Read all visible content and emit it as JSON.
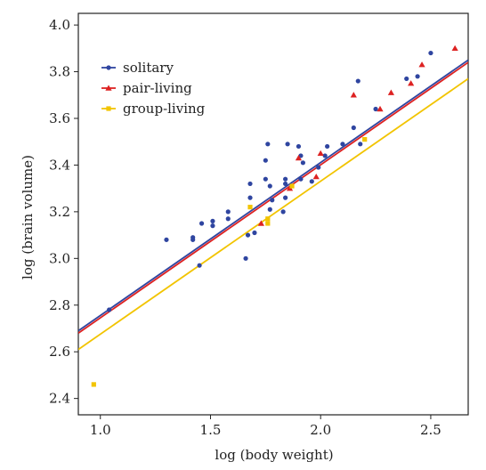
{
  "chart_data": {
    "type": "scatter",
    "xlabel": "log (body weight)",
    "ylabel": "log (brain volume)",
    "xlim": [
      0.9,
      2.67
    ],
    "ylim": [
      2.33,
      4.05
    ],
    "x_ticks": [
      1.0,
      1.5,
      2.0,
      2.5
    ],
    "x_tick_labels": [
      "1.0",
      "1.5",
      "2.0",
      "2.5"
    ],
    "y_ticks": [
      2.4,
      2.6,
      2.8,
      3.0,
      3.2,
      3.4,
      3.6,
      3.8,
      4.0
    ],
    "y_tick_labels": [
      "2.4",
      "2.6",
      "2.8",
      "3.0",
      "3.2",
      "3.4",
      "3.6",
      "3.8",
      "4.0"
    ],
    "grid": false,
    "legend_position": "top-left",
    "series": [
      {
        "name": "solitary",
        "color": "#2f45a0",
        "marker": "circle",
        "points": [
          [
            1.04,
            2.78
          ],
          [
            1.3,
            3.08
          ],
          [
            1.42,
            3.08
          ],
          [
            1.42,
            3.09
          ],
          [
            1.45,
            2.97
          ],
          [
            1.46,
            3.15
          ],
          [
            1.51,
            3.16
          ],
          [
            1.51,
            3.14
          ],
          [
            1.58,
            3.2
          ],
          [
            1.58,
            3.17
          ],
          [
            1.66,
            3.0
          ],
          [
            1.67,
            3.1
          ],
          [
            1.68,
            3.26
          ],
          [
            1.68,
            3.32
          ],
          [
            1.7,
            3.11
          ],
          [
            1.75,
            3.34
          ],
          [
            1.75,
            3.42
          ],
          [
            1.76,
            3.49
          ],
          [
            1.77,
            3.21
          ],
          [
            1.77,
            3.31
          ],
          [
            1.78,
            3.25
          ],
          [
            1.83,
            3.2
          ],
          [
            1.84,
            3.26
          ],
          [
            1.84,
            3.32
          ],
          [
            1.84,
            3.34
          ],
          [
            1.85,
            3.49
          ],
          [
            1.9,
            3.48
          ],
          [
            1.91,
            3.44
          ],
          [
            1.91,
            3.34
          ],
          [
            1.92,
            3.41
          ],
          [
            1.96,
            3.33
          ],
          [
            1.99,
            3.39
          ],
          [
            2.02,
            3.44
          ],
          [
            2.03,
            3.48
          ],
          [
            2.1,
            3.49
          ],
          [
            2.15,
            3.56
          ],
          [
            2.17,
            3.76
          ],
          [
            2.18,
            3.49
          ],
          [
            2.25,
            3.64
          ],
          [
            2.39,
            3.77
          ],
          [
            2.44,
            3.78
          ],
          [
            2.5,
            3.88
          ]
        ]
      },
      {
        "name": "pair-living",
        "color": "#dd2222",
        "marker": "triangle",
        "points": [
          [
            1.73,
            3.15
          ],
          [
            1.86,
            3.3
          ],
          [
            1.9,
            3.43
          ],
          [
            1.98,
            3.35
          ],
          [
            2.0,
            3.45
          ],
          [
            2.15,
            3.7
          ],
          [
            2.27,
            3.64
          ],
          [
            2.32,
            3.71
          ],
          [
            2.41,
            3.75
          ],
          [
            2.46,
            3.83
          ],
          [
            2.61,
            3.9
          ]
        ]
      },
      {
        "name": "group-living",
        "color": "#f2c400",
        "marker": "square",
        "points": [
          [
            0.97,
            2.46
          ],
          [
            1.68,
            3.22
          ],
          [
            1.76,
            3.17
          ],
          [
            1.76,
            3.15
          ],
          [
            1.87,
            3.31
          ],
          [
            2.2,
            3.51
          ]
        ]
      }
    ],
    "regression_lines": [
      {
        "name": "solitary",
        "color": "#2f45a0",
        "x": [
          0.9,
          2.67
        ],
        "y": [
          2.69,
          3.85
        ]
      },
      {
        "name": "pair-living",
        "color": "#dd2222",
        "x": [
          0.9,
          2.67
        ],
        "y": [
          2.68,
          3.84
        ]
      },
      {
        "name": "group-living",
        "color": "#f2c400",
        "x": [
          0.9,
          2.67
        ],
        "y": [
          2.61,
          3.77
        ]
      }
    ]
  }
}
